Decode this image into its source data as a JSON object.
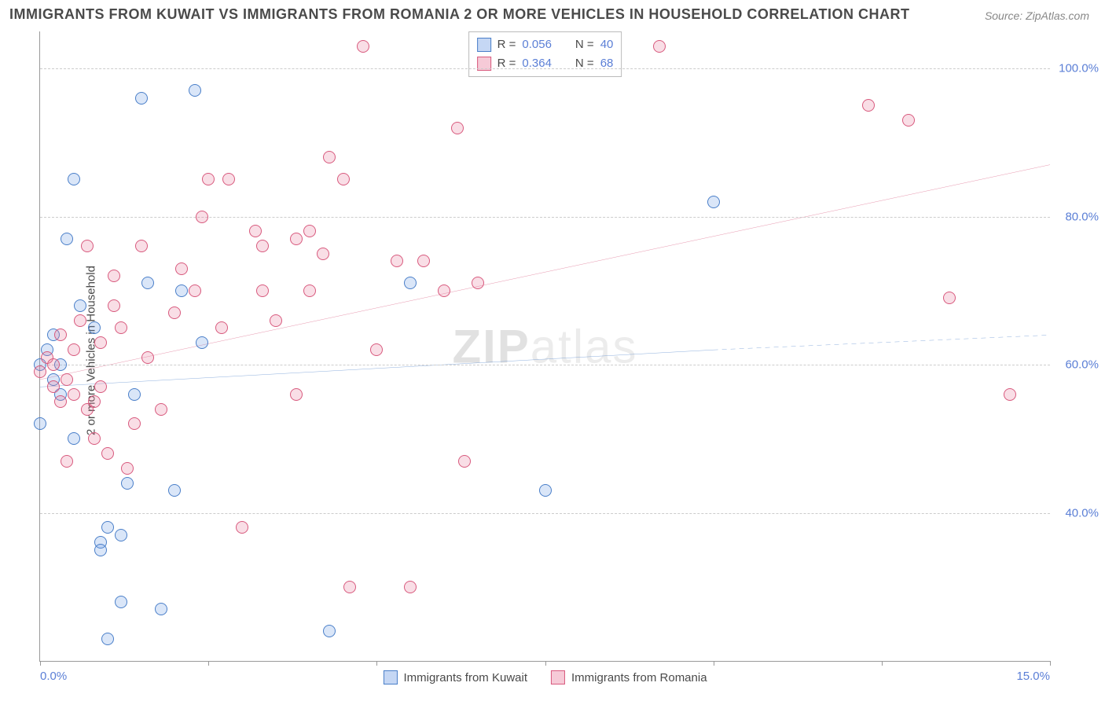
{
  "title": "IMMIGRANTS FROM KUWAIT VS IMMIGRANTS FROM ROMANIA 2 OR MORE VEHICLES IN HOUSEHOLD CORRELATION CHART",
  "source": "Source: ZipAtlas.com",
  "ylabel": "2 or more Vehicles in Household",
  "watermark": {
    "part1": "ZIP",
    "part2": "atlas"
  },
  "chart": {
    "type": "scatter",
    "background_color": "#ffffff",
    "grid_color": "#cccccc",
    "axis_color": "#999999",
    "tick_color": "#5b7fd6",
    "tick_fontsize": 15,
    "label_fontsize": 15,
    "title_fontsize": 18,
    "xlim": [
      0,
      15
    ],
    "ylim": [
      20,
      105
    ],
    "y_gridlines": [
      40,
      60,
      80,
      100
    ],
    "y_tick_labels": [
      "40.0%",
      "60.0%",
      "80.0%",
      "100.0%"
    ],
    "x_ticks": [
      0,
      2.5,
      5,
      7.5,
      10,
      12.5,
      15
    ],
    "x_tick_labels": [
      "0.0%",
      "",
      "",
      "",
      "",
      "",
      "15.0%"
    ],
    "marker_radius": 8,
    "marker_stroke_width": 1.5,
    "marker_fill_opacity": 0.25,
    "trend_line_width": 2.5,
    "series": [
      {
        "name": "Immigrants from Kuwait",
        "color": "#6d9ae4",
        "stroke": "#4a7fc9",
        "R": "0.056",
        "N": "40",
        "trend": {
          "x1": 0,
          "y1": 57,
          "x2": 10,
          "y2": 62,
          "dashed_to_x": 15,
          "dashed_to_y": 64
        },
        "points": [
          [
            0.0,
            52
          ],
          [
            0.0,
            60
          ],
          [
            0.1,
            62
          ],
          [
            0.2,
            64
          ],
          [
            0.2,
            58
          ],
          [
            0.3,
            60
          ],
          [
            0.3,
            56
          ],
          [
            0.4,
            77
          ],
          [
            0.5,
            85
          ],
          [
            0.5,
            50
          ],
          [
            0.6,
            68
          ],
          [
            0.8,
            65
          ],
          [
            0.9,
            36
          ],
          [
            0.9,
            35
          ],
          [
            1.0,
            38
          ],
          [
            1.0,
            23
          ],
          [
            1.2,
            37
          ],
          [
            1.2,
            28
          ],
          [
            1.3,
            44
          ],
          [
            1.4,
            56
          ],
          [
            1.5,
            96
          ],
          [
            1.6,
            71
          ],
          [
            1.8,
            27
          ],
          [
            2.0,
            43
          ],
          [
            2.1,
            70
          ],
          [
            2.3,
            97
          ],
          [
            2.4,
            63
          ],
          [
            4.3,
            24
          ],
          [
            5.5,
            71
          ],
          [
            7.5,
            43
          ],
          [
            10.0,
            82
          ]
        ]
      },
      {
        "name": "Immigrants from Romania",
        "color": "#e87b9a",
        "stroke": "#d85a7e",
        "R": "0.364",
        "N": "68",
        "trend": {
          "x1": 0,
          "y1": 58,
          "x2": 15,
          "y2": 87
        },
        "points": [
          [
            0.0,
            59
          ],
          [
            0.1,
            61
          ],
          [
            0.2,
            60
          ],
          [
            0.2,
            57
          ],
          [
            0.3,
            64
          ],
          [
            0.3,
            55
          ],
          [
            0.4,
            58
          ],
          [
            0.4,
            47
          ],
          [
            0.5,
            62
          ],
          [
            0.5,
            56
          ],
          [
            0.6,
            66
          ],
          [
            0.7,
            76
          ],
          [
            0.7,
            54
          ],
          [
            0.8,
            50
          ],
          [
            0.8,
            55
          ],
          [
            0.9,
            63
          ],
          [
            0.9,
            57
          ],
          [
            1.0,
            48
          ],
          [
            1.1,
            68
          ],
          [
            1.1,
            72
          ],
          [
            1.2,
            65
          ],
          [
            1.3,
            46
          ],
          [
            1.4,
            52
          ],
          [
            1.5,
            76
          ],
          [
            1.6,
            61
          ],
          [
            1.8,
            54
          ],
          [
            2.0,
            67
          ],
          [
            2.1,
            73
          ],
          [
            2.3,
            70
          ],
          [
            2.4,
            80
          ],
          [
            2.5,
            85
          ],
          [
            2.7,
            65
          ],
          [
            2.8,
            85
          ],
          [
            3.0,
            38
          ],
          [
            3.2,
            78
          ],
          [
            3.3,
            76
          ],
          [
            3.3,
            70
          ],
          [
            3.5,
            66
          ],
          [
            3.8,
            56
          ],
          [
            3.8,
            77
          ],
          [
            4.0,
            70
          ],
          [
            4.0,
            78
          ],
          [
            4.2,
            75
          ],
          [
            4.3,
            88
          ],
          [
            4.5,
            85
          ],
          [
            4.6,
            30
          ],
          [
            4.8,
            103
          ],
          [
            5.0,
            62
          ],
          [
            5.3,
            74
          ],
          [
            5.5,
            30
          ],
          [
            5.7,
            74
          ],
          [
            6.0,
            70
          ],
          [
            6.2,
            92
          ],
          [
            6.3,
            47
          ],
          [
            6.5,
            71
          ],
          [
            9.2,
            103
          ],
          [
            12.3,
            95
          ],
          [
            12.9,
            93
          ],
          [
            13.5,
            69
          ],
          [
            14.4,
            56
          ]
        ]
      }
    ]
  },
  "legend_bottom": [
    {
      "label": "Immigrants from Kuwait",
      "color": "#6d9ae4",
      "stroke": "#4a7fc9"
    },
    {
      "label": "Immigrants from Romania",
      "color": "#e87b9a",
      "stroke": "#d85a7e"
    }
  ]
}
